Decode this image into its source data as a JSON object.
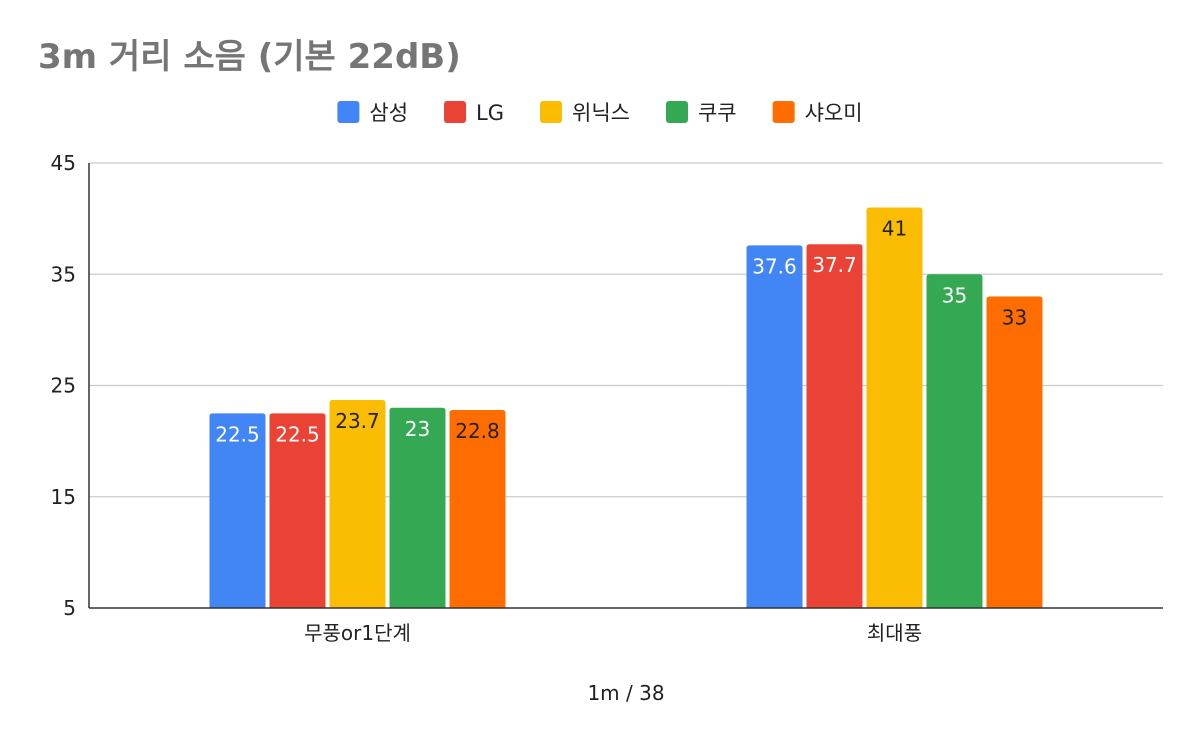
{
  "chart_data": {
    "type": "bar",
    "title": "3m 거리 소음 (기본 22dB)",
    "xlabel": "1m / 38",
    "ylabel": "",
    "categories": [
      "무풍or1단계",
      "최대풍"
    ],
    "series": [
      {
        "name": "삼성",
        "color": "#4285F4",
        "label_color": "#ffffff",
        "values": [
          22.5,
          37.6
        ]
      },
      {
        "name": "LG",
        "color": "#EA4335",
        "label_color": "#ffffff",
        "values": [
          22.5,
          37.7
        ]
      },
      {
        "name": "위닉스",
        "color": "#FBBC04",
        "label_color": "#222222",
        "values": [
          23.7,
          41
        ]
      },
      {
        "name": "쿠쿠",
        "color": "#34A853",
        "label_color": "#ffffff",
        "values": [
          23,
          35
        ]
      },
      {
        "name": "샤오미",
        "color": "#FF6D01",
        "label_color": "#222222",
        "values": [
          22.8,
          33
        ]
      }
    ],
    "ylim": [
      5,
      45
    ],
    "yticks": [
      5,
      15,
      25,
      35,
      45
    ],
    "grid": true,
    "legend_position": "top"
  }
}
